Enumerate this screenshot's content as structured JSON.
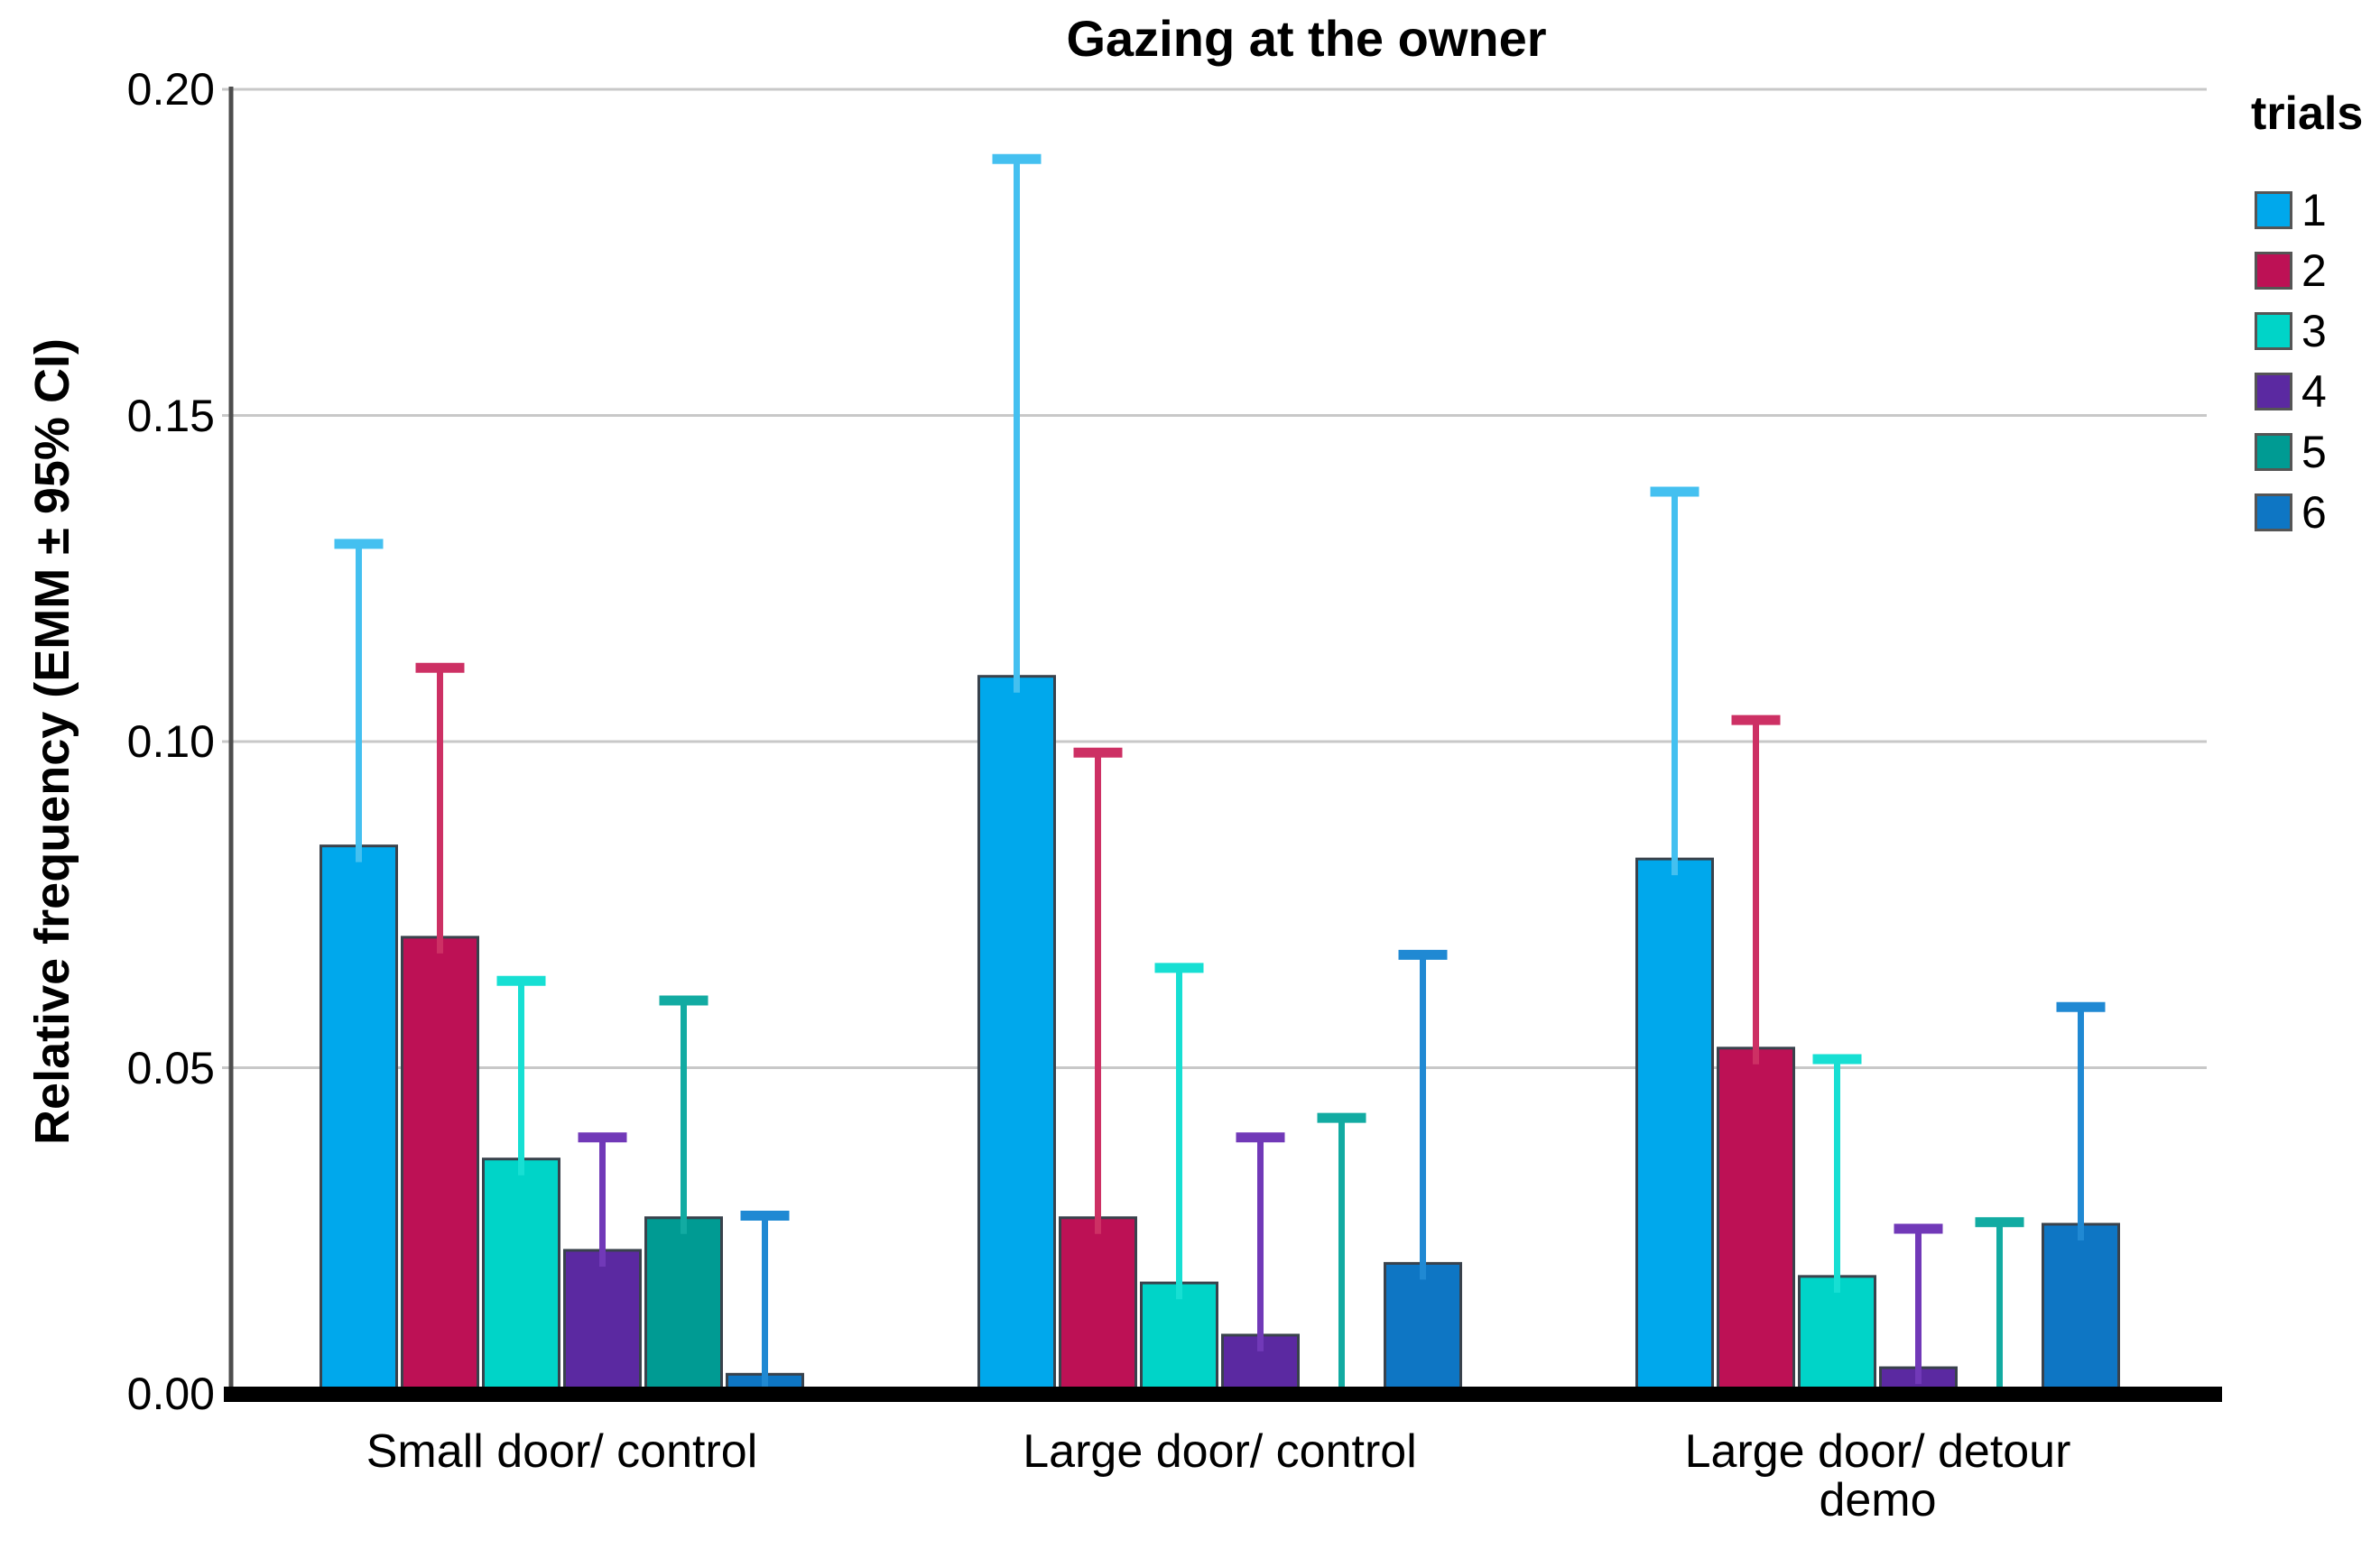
{
  "chart_data": {
    "type": "bar",
    "title": "Gazing at the owner",
    "ylabel": "Relative frequency (EMM ± 95% CI)",
    "xlabel": "",
    "ylim": [
      0,
      0.2
    ],
    "ytick_labels": [
      "0.00",
      "0.05",
      "0.10",
      "0.15",
      "0.20"
    ],
    "categories": [
      "Small door/ control",
      "Large door/ control",
      "Large door/ detour\ndemo"
    ],
    "legend_title": "trials",
    "legend_position": "right",
    "grid": true,
    "error_bars": "upper 95% confidence interval whiskers with caps",
    "series": [
      {
        "name": "1",
        "color": "#00A8EC",
        "error_color": "#44C0F0",
        "values": [
          0.084,
          0.11,
          0.082
        ],
        "ci_upper": [
          0.131,
          0.19,
          0.139
        ]
      },
      {
        "name": "2",
        "color": "#BD1155",
        "error_color": "#CD3064",
        "values": [
          0.07,
          0.027,
          0.053
        ],
        "ci_upper": [
          0.112,
          0.099,
          0.104
        ]
      },
      {
        "name": "3",
        "color": "#00D4C8",
        "error_color": "#17DFD3",
        "values": [
          0.036,
          0.017,
          0.018
        ],
        "ci_upper": [
          0.064,
          0.066,
          0.052
        ]
      },
      {
        "name": "4",
        "color": "#5B29A1",
        "error_color": "#7139B8",
        "values": [
          0.022,
          0.009,
          0.004
        ],
        "ci_upper": [
          0.04,
          0.04,
          0.026
        ]
      },
      {
        "name": "5",
        "color": "#009B93",
        "error_color": "#12ABA2",
        "values": [
          0.027,
          0.0,
          0.0
        ],
        "ci_upper": [
          0.061,
          0.043,
          0.027
        ]
      },
      {
        "name": "6",
        "color": "#0E76C4",
        "error_color": "#2089D3",
        "values": [
          0.003,
          0.02,
          0.026
        ],
        "ci_upper": [
          0.028,
          0.068,
          0.06
        ]
      }
    ]
  }
}
